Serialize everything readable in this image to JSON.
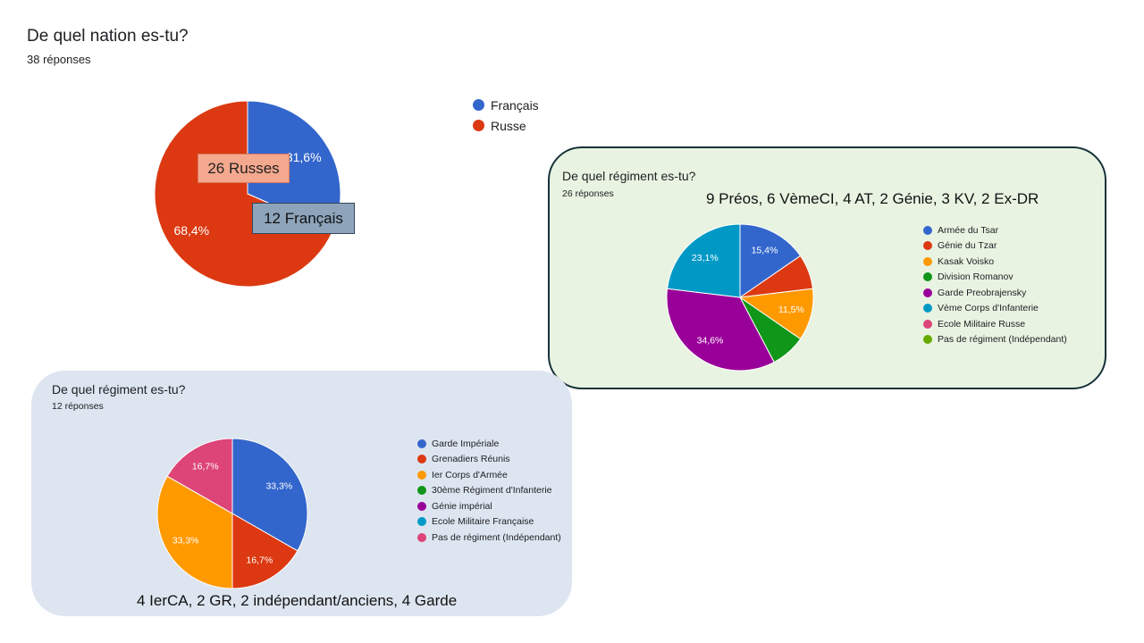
{
  "chart_data": [
    {
      "type": "pie",
      "title": "De quel nation es-tu?",
      "subtitle": "38 réponses",
      "categories": [
        "Français",
        "Russe"
      ],
      "values": [
        31.6,
        68.4
      ],
      "labels": [
        "31,6%",
        "68,4%"
      ],
      "colors": [
        "#3366cc",
        "#dc3912"
      ],
      "legend_position": "right",
      "annotations": [
        "26 Russes",
        "12 Français"
      ]
    },
    {
      "type": "pie",
      "title": "De quel régiment es-tu?",
      "subtitle": "26 réponses",
      "categories": [
        "Armée du Tsar",
        "Génie du Tzar",
        "Kasak Voisko",
        "Division Romanov",
        "Garde Preobrajensky",
        "Vème Corps d'Infanterie",
        "Ecole Militaire Russe",
        "Pas de régiment (Indépendant)"
      ],
      "values": [
        15.4,
        7.7,
        11.5,
        7.7,
        34.6,
        23.1,
        0,
        0
      ],
      "labels": [
        "15,4%",
        "",
        "11,5%",
        "",
        "34,6%",
        "23,1%",
        "",
        ""
      ],
      "colors": [
        "#3366cc",
        "#dc3912",
        "#ff9900",
        "#109618",
        "#990099",
        "#0099c6",
        "#dd4477",
        "#66aa00"
      ],
      "legend_position": "right",
      "annotation": "9 Préos, 6 VèmeCI, 4 AT, 2 Génie, 3 KV, 2 Ex-DR"
    },
    {
      "type": "pie",
      "title": "De quel régiment es-tu?",
      "subtitle": "12 réponses",
      "categories": [
        "Garde Impériale",
        "Grenadiers Réunis",
        "Ier Corps d'Armée",
        "30ème Régiment d'Infanterie",
        "Génie impérial",
        "Ecole Militaire Française",
        "Pas de régiment (Indépendant)"
      ],
      "values": [
        33.3,
        16.7,
        33.3,
        0,
        0,
        0,
        16.7
      ],
      "labels": [
        "33,3%",
        "16,7%",
        "33,3%",
        "",
        "",
        "",
        "16,7%"
      ],
      "colors": [
        "#3366cc",
        "#dc3912",
        "#ff9900",
        "#109618",
        "#990099",
        "#0099c6",
        "#dd4477"
      ],
      "legend_position": "right",
      "annotation": "4 IerCA, 2 GR, 2 indépendant/anciens, 4 Garde"
    }
  ]
}
